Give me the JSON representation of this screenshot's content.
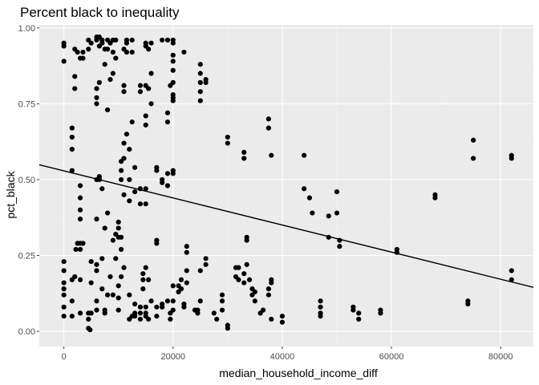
{
  "chart_data": {
    "type": "scatter",
    "title": "Percent black to inequality",
    "xlabel": "median_household_income_diff",
    "ylabel": "pct_black",
    "xlim": [
      -4500,
      86000
    ],
    "ylim": [
      -0.05,
      1.01
    ],
    "x_ticks": [
      0,
      20000,
      40000,
      60000,
      80000
    ],
    "x_tick_labels": [
      "0",
      "20000",
      "40000",
      "60000",
      "80000"
    ],
    "y_ticks": [
      0.0,
      0.25,
      0.5,
      0.75,
      1.0
    ],
    "y_tick_labels": [
      "0.00",
      "0.25",
      "0.50",
      "0.75",
      "1.00"
    ],
    "grid": true,
    "panel_color": "#ebebeb",
    "point_color": "#000000",
    "trend_line": {
      "x": [
        -4500,
        86000
      ],
      "y": [
        0.549,
        0.145
      ]
    },
    "points": [
      [
        0,
        0.95
      ],
      [
        0,
        0.94
      ],
      [
        0,
        0.89
      ],
      [
        0,
        0.23
      ],
      [
        0,
        0.2
      ],
      [
        0,
        0.16
      ],
      [
        0,
        0.14
      ],
      [
        0,
        0.12
      ],
      [
        0,
        0.08
      ],
      [
        0,
        0.05
      ],
      [
        1500,
        0.67
      ],
      [
        1500,
        0.64
      ],
      [
        1500,
        0.6
      ],
      [
        1500,
        0.53
      ],
      [
        1500,
        0.17
      ],
      [
        1500,
        0.1
      ],
      [
        1500,
        0.05
      ],
      [
        2000,
        0.93
      ],
      [
        2000,
        0.84
      ],
      [
        2000,
        0.8
      ],
      [
        2500,
        0.92
      ],
      [
        3000,
        0.9
      ],
      [
        2500,
        0.29
      ],
      [
        2200,
        0.27
      ],
      [
        2000,
        0.18
      ],
      [
        3000,
        0.48
      ],
      [
        3000,
        0.44
      ],
      [
        3000,
        0.4
      ],
      [
        3000,
        0.37
      ],
      [
        3000,
        0.29
      ],
      [
        3000,
        0.27
      ],
      [
        3000,
        0.17
      ],
      [
        3000,
        0.06
      ],
      [
        3500,
        0.92
      ],
      [
        3500,
        0.9
      ],
      [
        3500,
        0.29
      ],
      [
        4500,
        0.96
      ],
      [
        4500,
        0.93
      ],
      [
        4500,
        0.06
      ],
      [
        4500,
        0.04
      ],
      [
        4500,
        0.01
      ],
      [
        4800,
        0.005
      ],
      [
        5000,
        0.95
      ],
      [
        5000,
        0.23
      ],
      [
        5000,
        0.16
      ],
      [
        5000,
        0.06
      ],
      [
        6000,
        0.97
      ],
      [
        6000,
        0.96
      ],
      [
        6000,
        0.8
      ],
      [
        6000,
        0.77
      ],
      [
        6000,
        0.75
      ],
      [
        6000,
        0.5
      ],
      [
        6000,
        0.37
      ],
      [
        6000,
        0.22
      ],
      [
        6000,
        0.2
      ],
      [
        6000,
        0.1
      ],
      [
        6000,
        0.07
      ],
      [
        6500,
        0.97
      ],
      [
        6500,
        0.94
      ],
      [
        6500,
        0.82
      ],
      [
        6500,
        0.51
      ],
      [
        6500,
        0.5
      ],
      [
        7000,
        0.96
      ],
      [
        7000,
        0.95
      ],
      [
        7000,
        0.47
      ],
      [
        7000,
        0.24
      ],
      [
        7000,
        0.14
      ],
      [
        7500,
        0.93
      ],
      [
        7500,
        0.88
      ],
      [
        7500,
        0.34
      ],
      [
        7500,
        0.07
      ],
      [
        7500,
        0.06
      ],
      [
        8000,
        0.96
      ],
      [
        8000,
        0.93
      ],
      [
        8000,
        0.73
      ],
      [
        8000,
        0.39
      ],
      [
        8000,
        0.12
      ],
      [
        8500,
        0.95
      ],
      [
        8500,
        0.83
      ],
      [
        8500,
        0.18
      ],
      [
        9000,
        0.96
      ],
      [
        9000,
        0.92
      ],
      [
        9000,
        0.85
      ],
      [
        9000,
        0.3
      ],
      [
        9000,
        0.12
      ],
      [
        9500,
        0.96
      ],
      [
        9500,
        0.9
      ],
      [
        9500,
        0.32
      ],
      [
        9500,
        0.24
      ],
      [
        10000,
        0.36
      ],
      [
        10000,
        0.34
      ],
      [
        10000,
        0.31
      ],
      [
        10000,
        0.15
      ],
      [
        10000,
        0.11
      ],
      [
        10000,
        0.07
      ],
      [
        10500,
        0.56
      ],
      [
        10500,
        0.53
      ],
      [
        10500,
        0.5
      ],
      [
        10500,
        0.31
      ],
      [
        10500,
        0.27
      ],
      [
        10500,
        0.18
      ],
      [
        11000,
        0.93
      ],
      [
        11000,
        0.81
      ],
      [
        11000,
        0.79
      ],
      [
        11000,
        0.62
      ],
      [
        11000,
        0.57
      ],
      [
        11000,
        0.45
      ],
      [
        11000,
        0.21
      ],
      [
        11500,
        0.96
      ],
      [
        11500,
        0.95
      ],
      [
        11500,
        0.92
      ],
      [
        11500,
        0.65
      ],
      [
        12000,
        0.6
      ],
      [
        12000,
        0.5
      ],
      [
        12000,
        0.43
      ],
      [
        12000,
        0.12
      ],
      [
        12000,
        0.04
      ],
      [
        12500,
        0.96
      ],
      [
        12500,
        0.92
      ],
      [
        12500,
        0.69
      ],
      [
        12500,
        0.05
      ],
      [
        13000,
        0.54
      ],
      [
        13000,
        0.46
      ],
      [
        13000,
        0.09
      ],
      [
        13000,
        0.06
      ],
      [
        13000,
        0.05
      ],
      [
        14000,
        0.81
      ],
      [
        14000,
        0.79
      ],
      [
        14000,
        0.47
      ],
      [
        14000,
        0.42
      ],
      [
        14000,
        0.08
      ],
      [
        14000,
        0.06
      ],
      [
        14000,
        0.04
      ],
      [
        14500,
        0.19
      ],
      [
        14500,
        0.17
      ],
      [
        14500,
        0.14
      ],
      [
        15000,
        0.95
      ],
      [
        15000,
        0.94
      ],
      [
        15000,
        0.81
      ],
      [
        15000,
        0.71
      ],
      [
        15000,
        0.68
      ],
      [
        15000,
        0.47
      ],
      [
        15000,
        0.42
      ],
      [
        15000,
        0.21
      ],
      [
        15000,
        0.08
      ],
      [
        15000,
        0.06
      ],
      [
        15000,
        0.05
      ],
      [
        15500,
        0.93
      ],
      [
        15500,
        0.8
      ],
      [
        15500,
        0.17
      ],
      [
        15500,
        0.04
      ],
      [
        16000,
        0.95
      ],
      [
        16000,
        0.85
      ],
      [
        16000,
        0.75
      ],
      [
        16000,
        0.1
      ],
      [
        17000,
        0.54
      ],
      [
        17000,
        0.53
      ],
      [
        17000,
        0.3
      ],
      [
        17000,
        0.29
      ],
      [
        17000,
        0.08
      ],
      [
        17000,
        0.05
      ],
      [
        18000,
        0.96
      ],
      [
        18000,
        0.5
      ],
      [
        18000,
        0.49
      ],
      [
        18000,
        0.09
      ],
      [
        18000,
        0.08
      ],
      [
        19000,
        0.96
      ],
      [
        19000,
        0.72
      ],
      [
        19000,
        0.69
      ],
      [
        19000,
        0.52
      ],
      [
        19000,
        0.48
      ],
      [
        19000,
        0.1
      ],
      [
        19500,
        0.81
      ],
      [
        19500,
        0.06
      ],
      [
        19500,
        0.04
      ],
      [
        20000,
        0.96
      ],
      [
        20000,
        0.95
      ],
      [
        20000,
        0.91
      ],
      [
        20000,
        0.89
      ],
      [
        20000,
        0.86
      ],
      [
        20000,
        0.82
      ],
      [
        20000,
        0.78
      ],
      [
        20000,
        0.77
      ],
      [
        20000,
        0.76
      ],
      [
        20000,
        0.53
      ],
      [
        20000,
        0.52
      ],
      [
        20000,
        0.15
      ],
      [
        20000,
        0.1
      ],
      [
        20000,
        0.07
      ],
      [
        21000,
        0.15
      ],
      [
        21000,
        0.13
      ],
      [
        21500,
        0.17
      ],
      [
        21500,
        0.14
      ],
      [
        22000,
        0.92
      ],
      [
        22000,
        0.09
      ],
      [
        22000,
        0.08
      ],
      [
        22500,
        0.28
      ],
      [
        22500,
        0.26
      ],
      [
        22500,
        0.2
      ],
      [
        22500,
        0.16
      ],
      [
        24000,
        0.07
      ],
      [
        24500,
        0.07
      ],
      [
        24500,
        0.06
      ],
      [
        25000,
        0.88
      ],
      [
        25000,
        0.85
      ],
      [
        25000,
        0.82
      ],
      [
        25000,
        0.79
      ],
      [
        25000,
        0.76
      ],
      [
        25000,
        0.2
      ],
      [
        25000,
        0.1
      ],
      [
        26000,
        0.83
      ],
      [
        26000,
        0.82
      ],
      [
        26000,
        0.24
      ],
      [
        26000,
        0.22
      ],
      [
        27500,
        0.06
      ],
      [
        28000,
        0.04
      ],
      [
        29000,
        0.12
      ],
      [
        29000,
        0.1
      ],
      [
        29000,
        0.07
      ],
      [
        30000,
        0.64
      ],
      [
        30000,
        0.62
      ],
      [
        30000,
        0.02
      ],
      [
        30000,
        0.01
      ],
      [
        31500,
        0.21
      ],
      [
        31500,
        0.18
      ],
      [
        32000,
        0.21
      ],
      [
        32000,
        0.17
      ],
      [
        33000,
        0.59
      ],
      [
        33000,
        0.57
      ],
      [
        33000,
        0.19
      ],
      [
        33000,
        0.16
      ],
      [
        33500,
        0.31
      ],
      [
        33500,
        0.3
      ],
      [
        33500,
        0.22
      ],
      [
        34000,
        0.17
      ],
      [
        34500,
        0.14
      ],
      [
        34500,
        0.12
      ],
      [
        35000,
        0.13
      ],
      [
        35000,
        0.1
      ],
      [
        36000,
        0.06
      ],
      [
        36500,
        0.07
      ],
      [
        37500,
        0.7
      ],
      [
        37500,
        0.67
      ],
      [
        37500,
        0.14
      ],
      [
        37500,
        0.12
      ],
      [
        38000,
        0.58
      ],
      [
        38000,
        0.17
      ],
      [
        38000,
        0.16
      ],
      [
        38000,
        0.04
      ],
      [
        40000,
        0.05
      ],
      [
        40000,
        0.03
      ],
      [
        44000,
        0.58
      ],
      [
        44000,
        0.47
      ],
      [
        45000,
        0.44
      ],
      [
        45500,
        0.39
      ],
      [
        47000,
        0.1
      ],
      [
        47000,
        0.08
      ],
      [
        47000,
        0.06
      ],
      [
        47000,
        0.05
      ],
      [
        48500,
        0.38
      ],
      [
        48500,
        0.31
      ],
      [
        50000,
        0.46
      ],
      [
        50000,
        0.39
      ],
      [
        50500,
        0.3
      ],
      [
        50500,
        0.28
      ],
      [
        53000,
        0.08
      ],
      [
        53000,
        0.07
      ],
      [
        54000,
        0.06
      ],
      [
        54000,
        0.04
      ],
      [
        58000,
        0.07
      ],
      [
        58000,
        0.06
      ],
      [
        61000,
        0.27
      ],
      [
        61000,
        0.26
      ],
      [
        68000,
        0.45
      ],
      [
        68000,
        0.44
      ],
      [
        74000,
        0.1
      ],
      [
        74000,
        0.09
      ],
      [
        75000,
        0.63
      ],
      [
        75000,
        0.57
      ],
      [
        82000,
        0.58
      ],
      [
        82000,
        0.57
      ],
      [
        82000,
        0.2
      ],
      [
        82000,
        0.17
      ]
    ]
  }
}
